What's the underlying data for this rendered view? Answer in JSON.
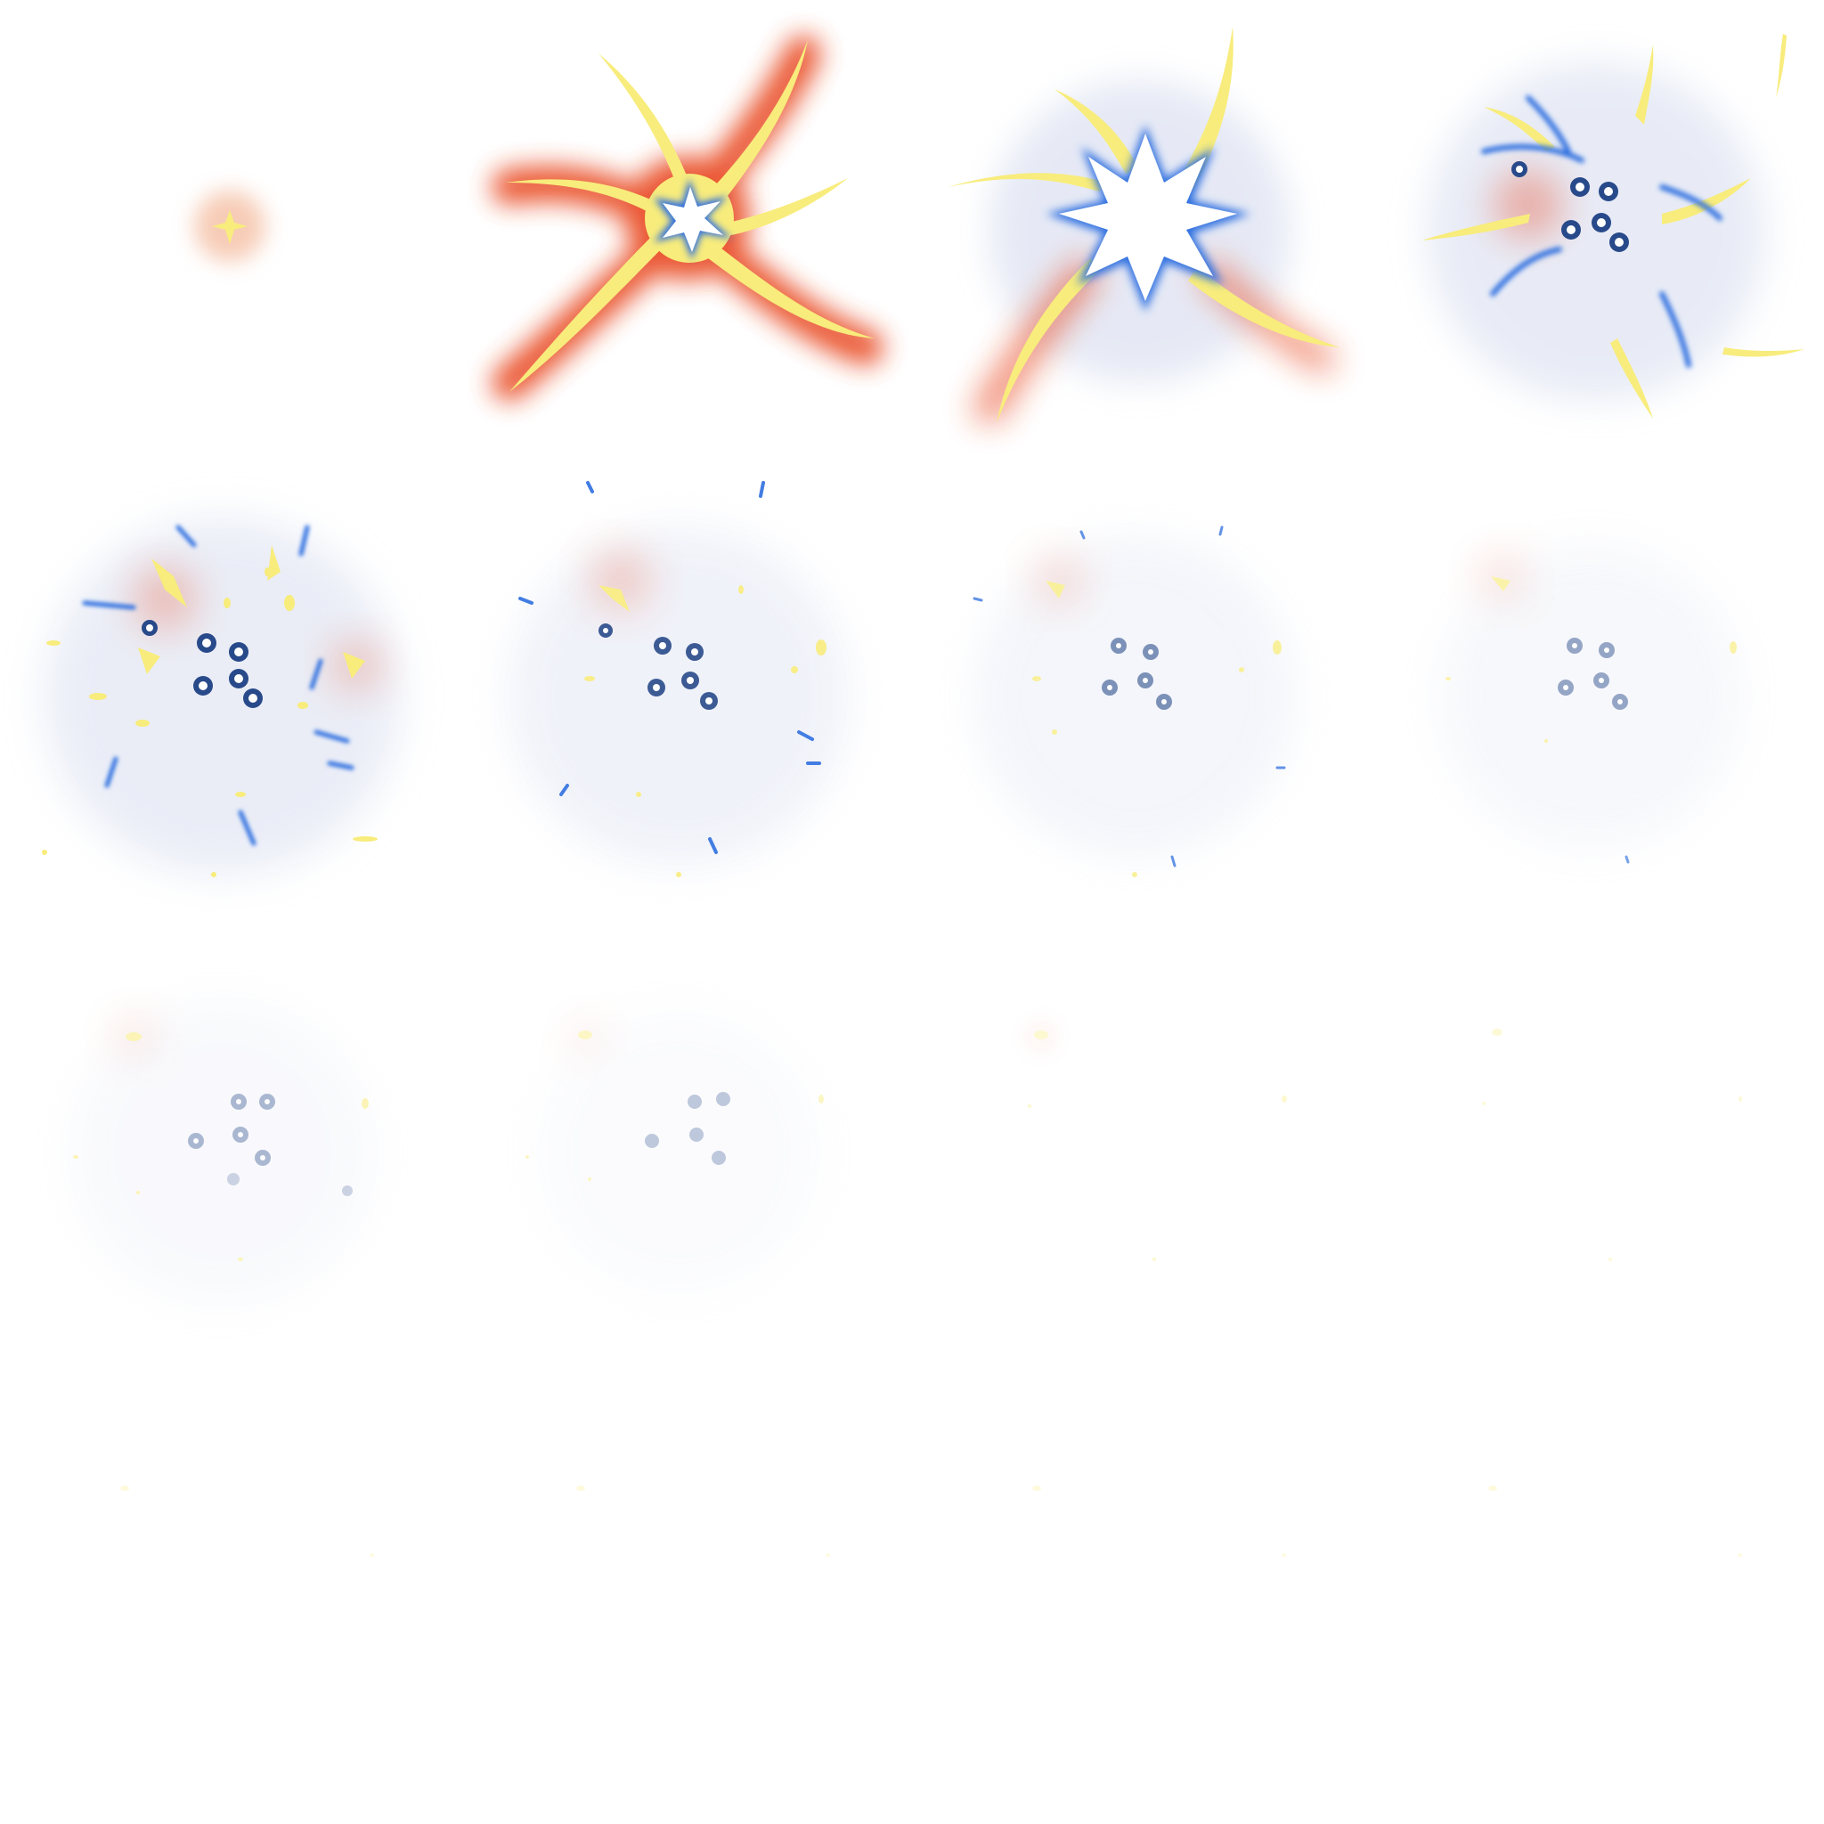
{
  "sheet": {
    "columns": 4,
    "rows": 4,
    "background": "#ffffff"
  },
  "palette": {
    "glow_red": "#e8451c",
    "glow_orange": "#f5a05a",
    "streak_yellow": "#f8ec7c",
    "streak_yellow_dark": "#efd95a",
    "core_white": "#ffffff",
    "electric_blue": "#2f6fe0",
    "orb_navy": "#284a8a",
    "haze_blue": "#d6dcef"
  },
  "frames": [
    {
      "index": 0,
      "phase": "spark",
      "intensity": 1.0
    },
    {
      "index": 1,
      "phase": "burst",
      "intensity": 1.0
    },
    {
      "index": 2,
      "phase": "peak",
      "intensity": 1.0
    },
    {
      "index": 3,
      "phase": "disperse",
      "intensity": 1.0
    },
    {
      "index": 4,
      "phase": "scatter",
      "intensity": 1.0
    },
    {
      "index": 5,
      "phase": "fade",
      "intensity": 0.8
    },
    {
      "index": 6,
      "phase": "fade",
      "intensity": 0.6
    },
    {
      "index": 7,
      "phase": "fade",
      "intensity": 0.5
    },
    {
      "index": 8,
      "phase": "fade",
      "intensity": 0.4
    },
    {
      "index": 9,
      "phase": "fade",
      "intensity": 0.3
    },
    {
      "index": 10,
      "phase": "embers",
      "intensity": 0.18
    },
    {
      "index": 11,
      "phase": "embers",
      "intensity": 0.12
    },
    {
      "index": 12,
      "phase": "embers",
      "intensity": 0.1
    },
    {
      "index": 13,
      "phase": "embers",
      "intensity": 0.1
    },
    {
      "index": 14,
      "phase": "embers",
      "intensity": 0.1
    },
    {
      "index": 15,
      "phase": "embers",
      "intensity": 0.1
    }
  ]
}
